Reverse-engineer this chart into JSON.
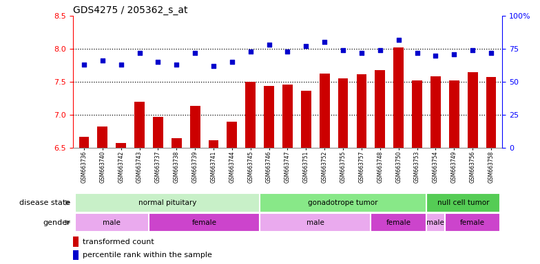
{
  "title": "GDS4275 / 205362_s_at",
  "samples": [
    "GSM663736",
    "GSM663740",
    "GSM663742",
    "GSM663743",
    "GSM663737",
    "GSM663738",
    "GSM663739",
    "GSM663741",
    "GSM663744",
    "GSM663745",
    "GSM663746",
    "GSM663747",
    "GSM663751",
    "GSM663752",
    "GSM663755",
    "GSM663757",
    "GSM663748",
    "GSM663750",
    "GSM663753",
    "GSM663754",
    "GSM663749",
    "GSM663756",
    "GSM663758"
  ],
  "transformed_count": [
    6.67,
    6.82,
    6.57,
    7.2,
    6.97,
    6.65,
    7.14,
    6.62,
    6.9,
    7.5,
    7.44,
    7.46,
    7.36,
    7.63,
    7.55,
    7.62,
    7.68,
    8.02,
    7.52,
    7.58,
    7.52,
    7.65,
    7.57
  ],
  "percentile_rank": [
    63,
    66,
    63,
    72,
    65,
    63,
    72,
    62,
    65,
    73,
    78,
    73,
    77,
    80,
    74,
    72,
    74,
    82,
    72,
    70,
    71,
    74,
    72
  ],
  "ylim_left": [
    6.5,
    8.5
  ],
  "ylim_right": [
    0,
    100
  ],
  "yticks_left": [
    6.5,
    7.0,
    7.5,
    8.0,
    8.5
  ],
  "yticks_right": [
    0,
    25,
    50,
    75,
    100
  ],
  "hlines": [
    7.0,
    7.5,
    8.0
  ],
  "bar_color": "#cc0000",
  "dot_color": "#0000cc",
  "disease_state_groups": [
    {
      "label": "normal pituitary",
      "start": 0,
      "end": 9,
      "color": "#c8f0c8"
    },
    {
      "label": "gonadotrope tumor",
      "start": 10,
      "end": 18,
      "color": "#88e888"
    },
    {
      "label": "null cell tumor",
      "start": 19,
      "end": 22,
      "color": "#55cc55"
    }
  ],
  "gender_groups": [
    {
      "label": "male",
      "start": 0,
      "end": 3,
      "color": "#eaaaee"
    },
    {
      "label": "female",
      "start": 4,
      "end": 9,
      "color": "#cc44cc"
    },
    {
      "label": "male",
      "start": 10,
      "end": 15,
      "color": "#eaaaee"
    },
    {
      "label": "female",
      "start": 16,
      "end": 18,
      "color": "#cc44cc"
    },
    {
      "label": "male",
      "start": 19,
      "end": 19,
      "color": "#eaaaee"
    },
    {
      "label": "female",
      "start": 20,
      "end": 22,
      "color": "#cc44cc"
    }
  ],
  "ds_label": "disease state",
  "gender_label": "gender",
  "legend_bar_label": "transformed count",
  "legend_dot_label": "percentile rank within the sample",
  "bar_color_legend": "#cc0000",
  "dot_color_legend": "#0000cc"
}
